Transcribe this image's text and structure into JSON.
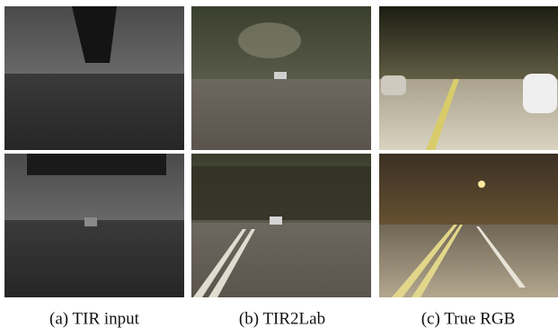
{
  "captions": [
    "(a) TIR input",
    "(b) TIR2Lab",
    "(c) True RGB"
  ]
}
